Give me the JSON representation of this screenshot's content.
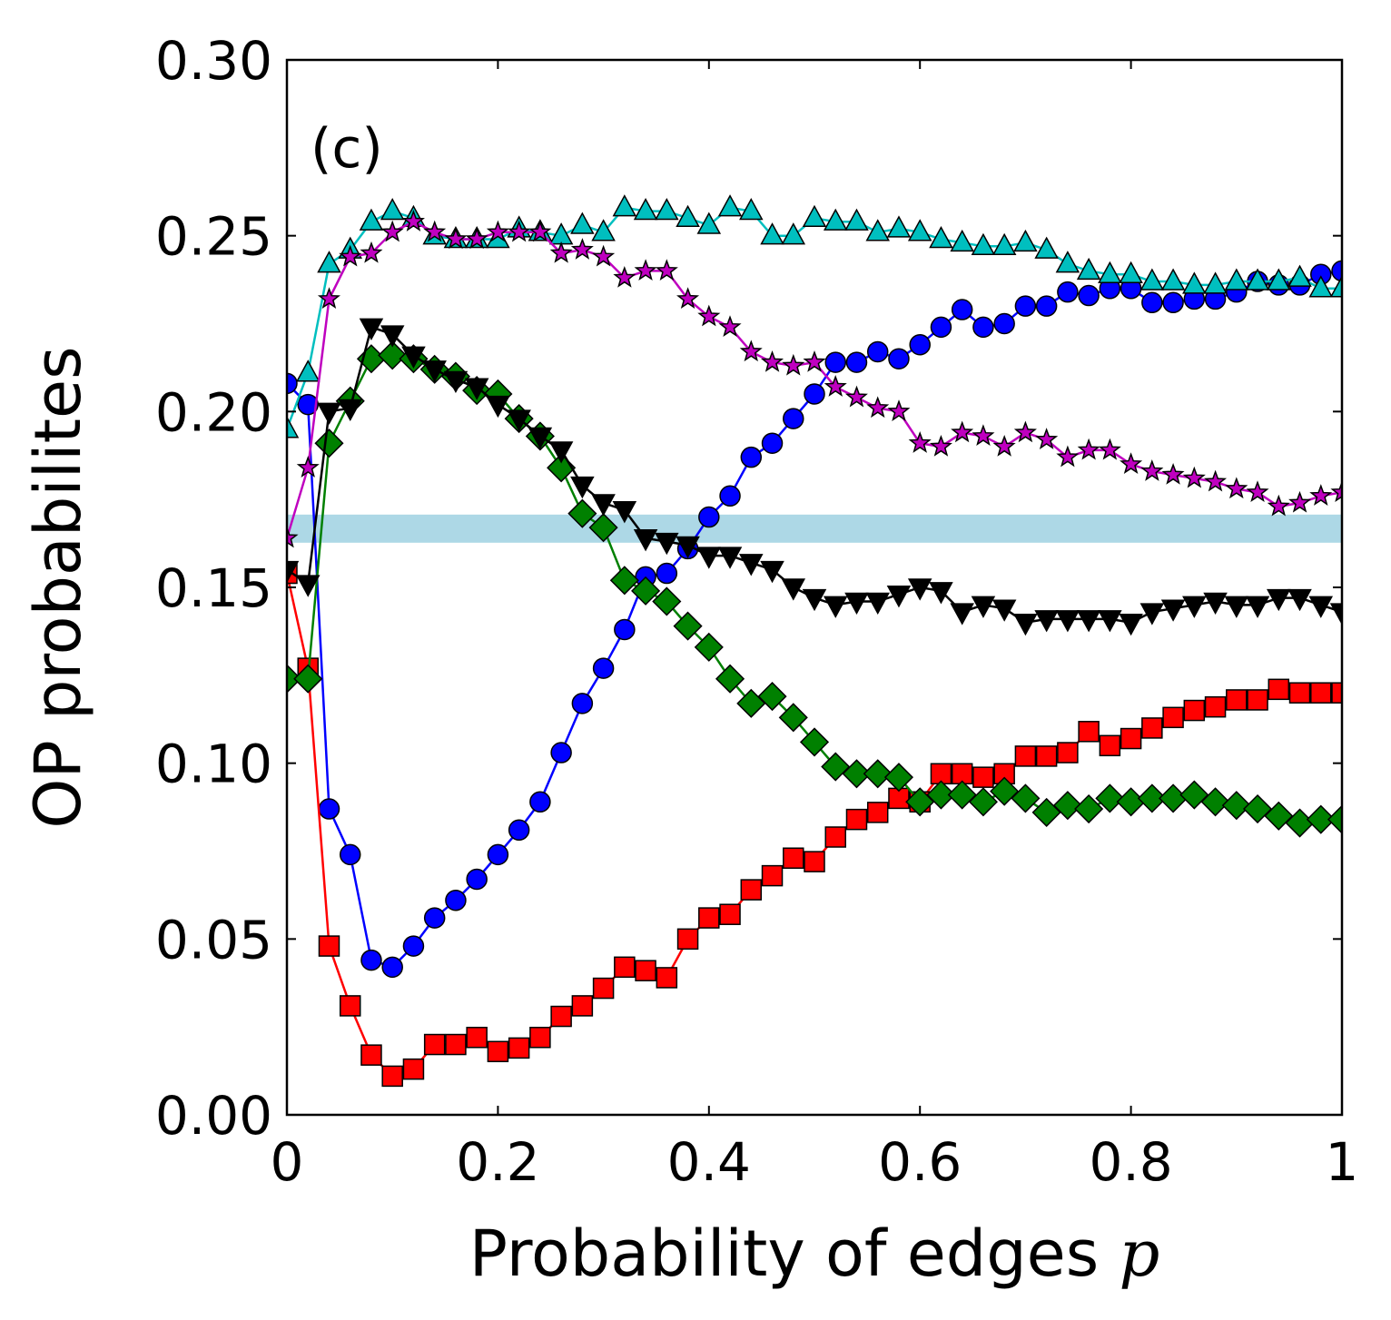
{
  "chart_data": {
    "type": "line",
    "panel_label": "(c)",
    "xlabel": "Probability of edges ",
    "xlabel_var": "p",
    "ylabel": "OP probabilites",
    "xlim": [
      0,
      1
    ],
    "ylim": [
      0,
      0.3
    ],
    "xticks": [
      0,
      0.2,
      0.4,
      0.6,
      0.8,
      1
    ],
    "xtick_labels": [
      "0",
      "0.2",
      "0.4",
      "0.6",
      "0.8",
      "1"
    ],
    "yticks": [
      0,
      0.05,
      0.1,
      0.15,
      0.2,
      0.25,
      0.3
    ],
    "ytick_labels": [
      "0.00",
      "0.05",
      "0.10",
      "0.15",
      "0.20",
      "0.25",
      "0.30"
    ],
    "reference_band": {
      "y": [
        0.1627,
        0.1707
      ],
      "color": "#add8e6"
    },
    "x": [
      0,
      0.02,
      0.04,
      0.06,
      0.08,
      0.1,
      0.12,
      0.14,
      0.16,
      0.18,
      0.2,
      0.22,
      0.24,
      0.26,
      0.28,
      0.3,
      0.32,
      0.34,
      0.36,
      0.38,
      0.4,
      0.42,
      0.44,
      0.46,
      0.48,
      0.5,
      0.52,
      0.54,
      0.56,
      0.58,
      0.6,
      0.62,
      0.64,
      0.66,
      0.68,
      0.7,
      0.72,
      0.74,
      0.76,
      0.78,
      0.8,
      0.82,
      0.84,
      0.86,
      0.88,
      0.9,
      0.92,
      0.94,
      0.96,
      0.98,
      1.0
    ],
    "series": [
      {
        "name": "circles",
        "color": "#0000ff",
        "marker": "circle",
        "values": [
          0.208,
          0.202,
          0.087,
          0.074,
          0.044,
          0.042,
          0.048,
          0.056,
          0.061,
          0.067,
          0.074,
          0.081,
          0.089,
          0.103,
          0.117,
          0.127,
          0.138,
          0.153,
          0.154,
          0.161,
          0.17,
          0.176,
          0.187,
          0.191,
          0.198,
          0.205,
          0.214,
          0.214,
          0.217,
          0.215,
          0.219,
          0.224,
          0.229,
          0.224,
          0.225,
          0.23,
          0.23,
          0.234,
          0.233,
          0.235,
          0.235,
          0.231,
          0.231,
          0.232,
          0.232,
          0.234,
          0.237,
          0.236,
          0.236,
          0.239,
          0.24
        ]
      },
      {
        "name": "squares",
        "color": "#ff0000",
        "marker": "square",
        "values": [
          0.154,
          0.127,
          0.048,
          0.031,
          0.017,
          0.011,
          0.013,
          0.02,
          0.02,
          0.022,
          0.018,
          0.019,
          0.022,
          0.028,
          0.031,
          0.036,
          0.042,
          0.041,
          0.039,
          0.05,
          0.056,
          0.057,
          0.064,
          0.068,
          0.073,
          0.072,
          0.079,
          0.084,
          0.086,
          0.09,
          0.089,
          0.097,
          0.097,
          0.096,
          0.097,
          0.102,
          0.102,
          0.103,
          0.109,
          0.105,
          0.107,
          0.11,
          0.113,
          0.115,
          0.116,
          0.118,
          0.118,
          0.121,
          0.12,
          0.12,
          0.12
        ]
      },
      {
        "name": "diamonds",
        "color": "#008000",
        "marker": "diamond",
        "values": [
          0.124,
          0.124,
          0.191,
          0.203,
          0.215,
          0.216,
          0.215,
          0.212,
          0.21,
          0.206,
          0.205,
          0.198,
          0.193,
          0.184,
          0.171,
          0.167,
          0.152,
          0.149,
          0.146,
          0.139,
          0.133,
          0.124,
          0.117,
          0.119,
          0.113,
          0.106,
          0.099,
          0.097,
          0.097,
          0.096,
          0.089,
          0.091,
          0.091,
          0.089,
          0.092,
          0.09,
          0.086,
          0.088,
          0.087,
          0.09,
          0.089,
          0.09,
          0.09,
          0.091,
          0.089,
          0.088,
          0.087,
          0.085,
          0.083,
          0.084,
          0.084
        ]
      },
      {
        "name": "down-triangles",
        "color": "#000000",
        "marker": "triangle-down",
        "values": [
          0.155,
          0.151,
          0.2,
          0.201,
          0.224,
          0.222,
          0.216,
          0.212,
          0.209,
          0.207,
          0.202,
          0.198,
          0.193,
          0.189,
          0.179,
          0.174,
          0.172,
          0.164,
          0.163,
          0.162,
          0.159,
          0.159,
          0.157,
          0.155,
          0.15,
          0.147,
          0.145,
          0.146,
          0.146,
          0.148,
          0.15,
          0.149,
          0.143,
          0.145,
          0.144,
          0.14,
          0.141,
          0.141,
          0.141,
          0.141,
          0.14,
          0.143,
          0.144,
          0.145,
          0.146,
          0.145,
          0.145,
          0.147,
          0.147,
          0.145,
          0.143
        ]
      },
      {
        "name": "up-triangles",
        "color": "#00bfbf",
        "marker": "triangle-up",
        "values": [
          0.195,
          0.211,
          0.242,
          0.246,
          0.254,
          0.257,
          0.255,
          0.25,
          0.249,
          0.249,
          0.249,
          0.252,
          0.251,
          0.25,
          0.253,
          0.251,
          0.258,
          0.257,
          0.257,
          0.255,
          0.253,
          0.258,
          0.257,
          0.25,
          0.25,
          0.255,
          0.254,
          0.254,
          0.251,
          0.252,
          0.251,
          0.249,
          0.248,
          0.247,
          0.247,
          0.248,
          0.246,
          0.242,
          0.24,
          0.239,
          0.239,
          0.237,
          0.237,
          0.236,
          0.236,
          0.237,
          0.237,
          0.237,
          0.238,
          0.235,
          0.235
        ]
      },
      {
        "name": "stars",
        "color": "#bf00bf",
        "marker": "star",
        "values": [
          0.164,
          0.184,
          0.232,
          0.244,
          0.245,
          0.251,
          0.254,
          0.251,
          0.249,
          0.249,
          0.251,
          0.251,
          0.251,
          0.245,
          0.246,
          0.244,
          0.238,
          0.24,
          0.24,
          0.232,
          0.227,
          0.224,
          0.217,
          0.214,
          0.213,
          0.214,
          0.207,
          0.204,
          0.201,
          0.2,
          0.191,
          0.19,
          0.194,
          0.193,
          0.19,
          0.194,
          0.192,
          0.187,
          0.189,
          0.189,
          0.185,
          0.183,
          0.182,
          0.181,
          0.18,
          0.178,
          0.177,
          0.173,
          0.174,
          0.176,
          0.177
        ]
      }
    ]
  }
}
